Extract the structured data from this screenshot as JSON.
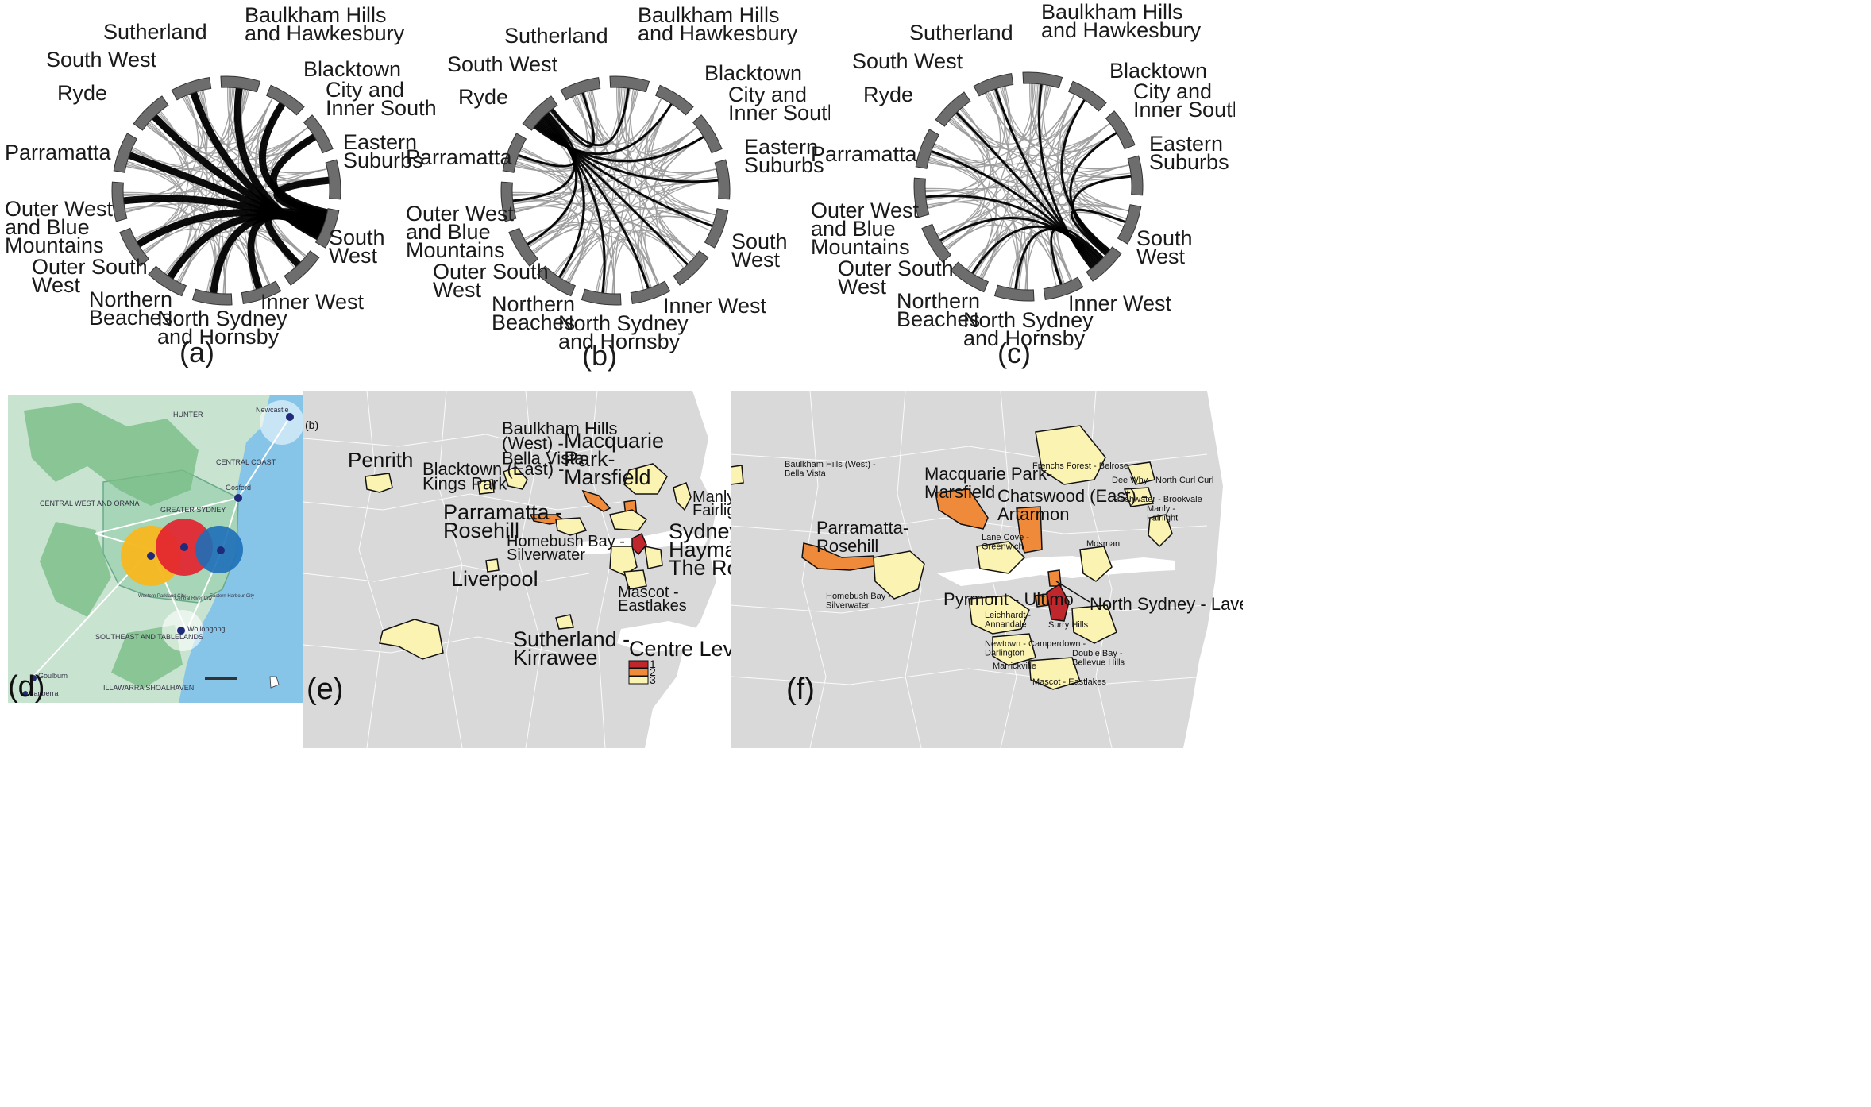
{
  "chord_regions": [
    "Sutherland",
    "Baulkham Hills and Hawkesbury",
    "Blacktown",
    "City and Inner South",
    "Eastern Suburbs",
    "South West",
    "Inner West",
    "North Sydney and Hornsby",
    "Northern Beaches",
    "Outer South West",
    "Outer West and Blue Mountains",
    "Parramatta",
    "Ryde",
    "South West"
  ],
  "chords": [
    {
      "caption": "(a)",
      "label_lines": [
        [
          "Sutherland"
        ],
        [
          "Baulkham Hills",
          "and Hawkesbury"
        ],
        [
          "Blacktown"
        ],
        [
          "City and",
          "Inner South"
        ],
        [
          "Eastern",
          "Suburbs"
        ],
        [
          "South",
          "West"
        ],
        [
          "Inner West"
        ],
        [
          "North Sydney",
          "and Hornsby"
        ],
        [
          "Northern",
          "Beaches"
        ],
        [
          "Outer South",
          "West"
        ],
        [
          "Outer West",
          "and Blue",
          "Mountains"
        ],
        [
          "Parramatta"
        ],
        [
          "Ryde"
        ],
        [
          "South West"
        ]
      ],
      "highlight_hub": "City and Inner South"
    },
    {
      "caption": "(b)",
      "label_lines": [
        [
          "Sutherland"
        ],
        [
          "Baulkham Hills",
          "and Hawkesbury"
        ],
        [
          "Blacktown"
        ],
        [
          "City and",
          "Inner South"
        ],
        [
          "Eastern",
          "Suburbs"
        ],
        [
          "South",
          "West"
        ],
        [
          "Inner West"
        ],
        [
          "North Sydney",
          "and Hornsby"
        ],
        [
          "Northern",
          "Beaches"
        ],
        [
          "Outer South",
          "West"
        ],
        [
          "Outer West",
          "and Blue",
          "Mountains"
        ],
        [
          "Parramatta"
        ],
        [
          "Ryde"
        ],
        [
          "South West"
        ]
      ],
      "highlight_hub": "Parramatta"
    },
    {
      "caption": "(c)",
      "label_lines": [
        [
          "Sutherland"
        ],
        [
          "Baulkham Hills",
          "and Hawkesbury"
        ],
        [
          "Blacktown"
        ],
        [
          "City and",
          "Inner South"
        ],
        [
          "Eastern",
          "Suburbs"
        ],
        [
          "South",
          "West"
        ],
        [
          "Inner West"
        ],
        [
          "North Sydney",
          "and Hornsby"
        ],
        [
          "Northern",
          "Beaches"
        ],
        [
          "Outer South",
          "West"
        ],
        [
          "Outer West",
          "and Blue",
          "Mountains"
        ],
        [
          "Parramatta"
        ],
        [
          "Ryde"
        ],
        [
          "South West"
        ]
      ],
      "highlight_hub": "Eastern Suburbs"
    }
  ],
  "map_d": {
    "caption": "(d)",
    "regions": [
      "HUNTER",
      "CENTRAL COAST",
      "GREATER SYDNEY",
      "CENTRAL WEST AND ORANA",
      "SOUTHEAST AND TABLELANDS",
      "ILLAWARRA SHOALHAVEN"
    ],
    "cities": [
      "Newcastle",
      "Gosford",
      "Wollongong",
      "Goulburn",
      "Canberra"
    ],
    "centres": [
      "Western Parkland City",
      "Central River City",
      "Eastern Harbour City"
    ]
  },
  "map_e": {
    "caption": "(e)",
    "subcaption": "(b)",
    "labels": [
      {
        "lines": [
          "Penrith"
        ]
      },
      {
        "lines": [
          "Baulkham Hills",
          "(West) -",
          "Bella Vista"
        ]
      },
      {
        "lines": [
          "Blacktown (East) -",
          "Kings Park"
        ]
      },
      {
        "lines": [
          "Macquarie",
          "Park-",
          "Marsfield"
        ]
      },
      {
        "lines": [
          "Manly -",
          "Fairlight"
        ]
      },
      {
        "lines": [
          "Parramatta -",
          "Rosehill"
        ]
      },
      {
        "lines": [
          "Homebush Bay -",
          "Silverwater"
        ]
      },
      {
        "lines": [
          "Sydney -",
          "Haymarket -",
          "The Rocks"
        ]
      },
      {
        "lines": [
          "Liverpool"
        ]
      },
      {
        "lines": [
          "Mascot -",
          "Eastlakes"
        ]
      },
      {
        "lines": [
          "Sutherland -",
          "Kirrawee"
        ]
      }
    ],
    "legend": {
      "title": "Centre Levels",
      "items": [
        {
          "label": "1",
          "color": "#c0272d"
        },
        {
          "label": "2",
          "color": "#ee8a3a"
        },
        {
          "label": "3",
          "color": "#fbf3b2"
        }
      ]
    }
  },
  "map_f": {
    "caption": "(f)",
    "labels": [
      {
        "lines": [
          "Baulkham Hills (West) -",
          "Bella Vista"
        ]
      },
      {
        "lines": [
          "Macquarie Park-",
          "Marsfield"
        ]
      },
      {
        "lines": [
          "Frenchs Forest - Belrose"
        ]
      },
      {
        "lines": [
          "Dee Why - North Curl Curl"
        ]
      },
      {
        "lines": [
          "Freshwater - Brookvale"
        ]
      },
      {
        "lines": [
          "Chatswood (East) -",
          "Artarmon"
        ]
      },
      {
        "lines": [
          "Manly -",
          "Fairlight"
        ]
      },
      {
        "lines": [
          "Parramatta-",
          "Rosehill"
        ]
      },
      {
        "lines": [
          "Lane Cove -",
          "Greenwich"
        ]
      },
      {
        "lines": [
          "Mosman"
        ]
      },
      {
        "lines": [
          "Homebush Bay -",
          "Silverwater"
        ]
      },
      {
        "lines": [
          "Pyrmont - Ultimo"
        ]
      },
      {
        "lines": [
          "North Sydney - Lavender Bay"
        ]
      },
      {
        "lines": [
          "Leichhardt -",
          "Annandale"
        ]
      },
      {
        "lines": [
          "Surry Hills"
        ]
      },
      {
        "lines": [
          "Newtown - Camperdown -",
          "Darlington"
        ]
      },
      {
        "lines": [
          "Double Bay -",
          "Bellevue Hills"
        ]
      },
      {
        "lines": [
          "Marrickville"
        ]
      },
      {
        "lines": [
          "Mascot - Eastlakes"
        ]
      }
    ]
  },
  "colors": {
    "chord_dark": "#000000",
    "chord_light": "#9a9a9a",
    "ring": "#6d6d6d",
    "level1": "#c0272d",
    "level2": "#ee8a3a",
    "level3": "#fbf3b2",
    "map_bg": "#d9d9d9",
    "sea": "#ffffff"
  }
}
